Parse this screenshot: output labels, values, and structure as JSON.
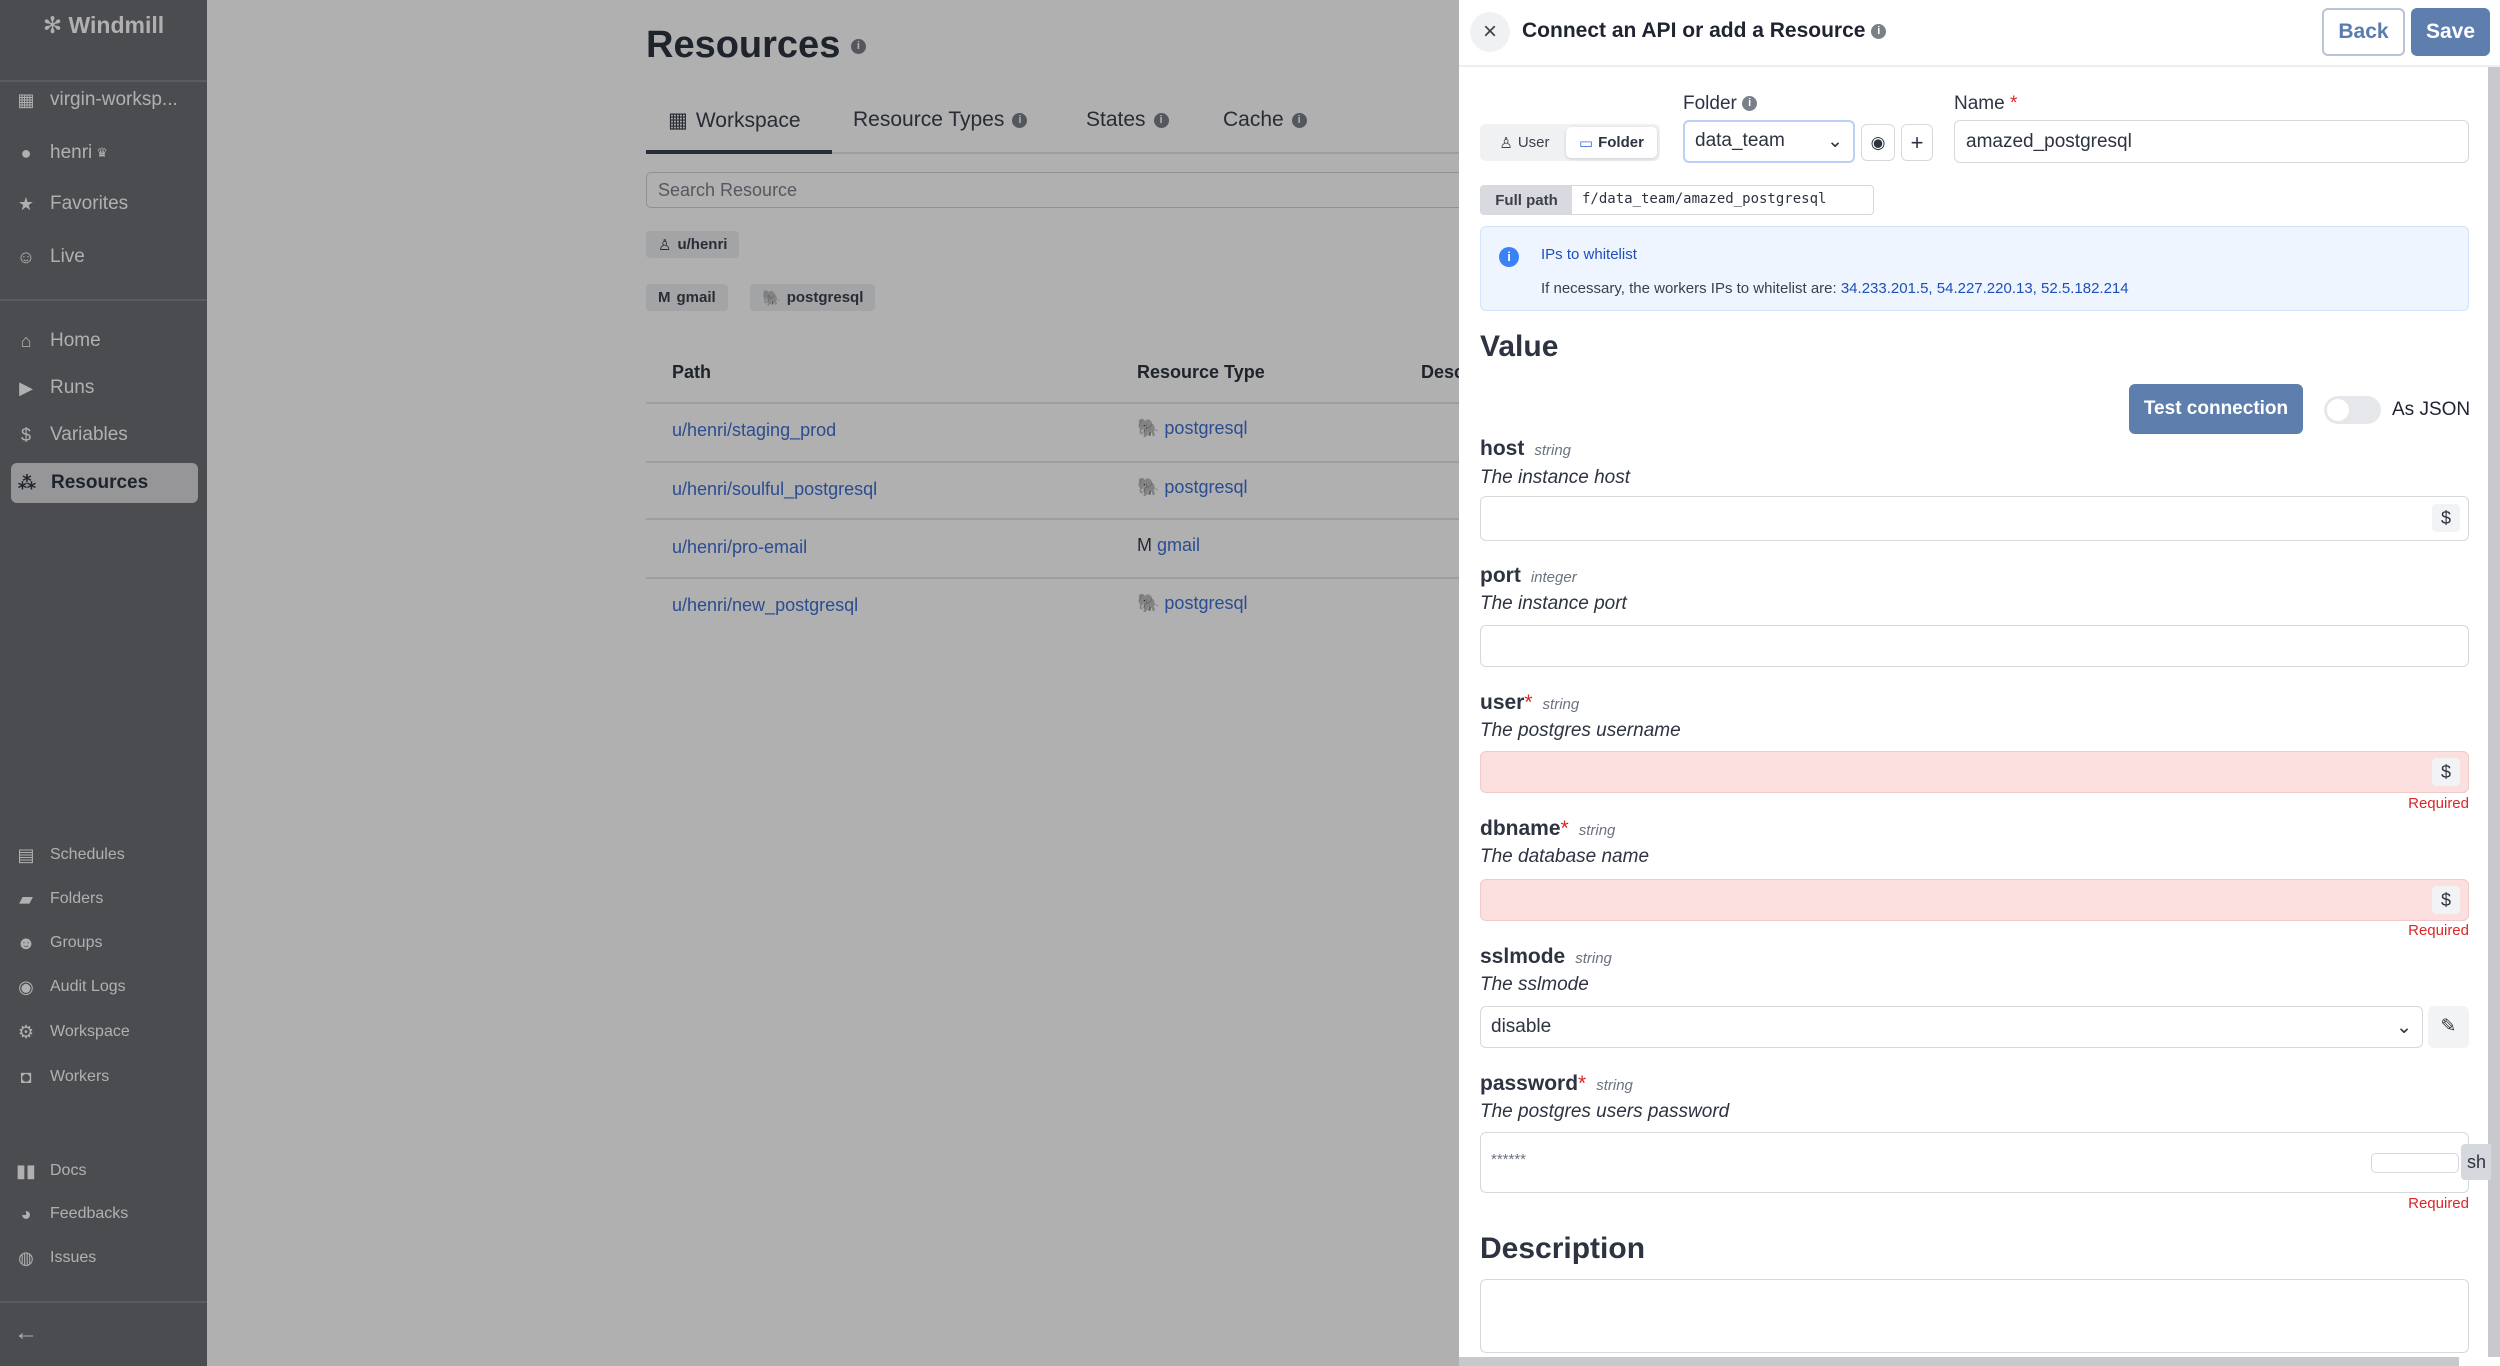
{
  "sidebar": {
    "logo": "Windmill",
    "workspace": "virgin-worksp...",
    "user": "henri",
    "top_items": [
      {
        "label": "Favorites",
        "icon": "star-icon"
      },
      {
        "label": "Live",
        "icon": "users-icon"
      }
    ],
    "main_items": [
      {
        "label": "Home",
        "icon": "home-icon"
      },
      {
        "label": "Runs",
        "icon": "play-icon"
      },
      {
        "label": "Variables",
        "icon": "dollar-icon"
      },
      {
        "label": "Resources",
        "icon": "boxes-icon",
        "active": true
      }
    ],
    "settings_items": [
      {
        "label": "Schedules"
      },
      {
        "label": "Folders"
      },
      {
        "label": "Groups"
      },
      {
        "label": "Audit Logs"
      },
      {
        "label": "Workspace"
      },
      {
        "label": "Workers"
      }
    ],
    "help_items": [
      {
        "label": "Docs"
      },
      {
        "label": "Feedbacks"
      },
      {
        "label": "Issues"
      }
    ]
  },
  "main": {
    "title": "Resources",
    "tabs": [
      {
        "label": "Workspace",
        "active": true
      },
      {
        "label": "Resource Types"
      },
      {
        "label": "States"
      },
      {
        "label": "Cache"
      }
    ],
    "search_placeholder": "Search Resource",
    "owner_filter": "u/henri",
    "type_filters": [
      "gmail",
      "postgresql"
    ],
    "table": {
      "headers": [
        "Path",
        "Resource Type",
        "Desc"
      ],
      "rows": [
        {
          "path": "u/henri/staging_prod",
          "type": "postgresql"
        },
        {
          "path": "u/henri/soulful_postgresql",
          "type": "postgresql"
        },
        {
          "path": "u/henri/pro-email",
          "type": "gmail"
        },
        {
          "path": "u/henri/new_postgresql",
          "type": "postgresql"
        }
      ]
    }
  },
  "drawer": {
    "title": "Connect an API or add a Resource",
    "back": "Back",
    "save": "Save",
    "owner_toggle": {
      "user": "User",
      "folder": "Folder",
      "selected": "Folder"
    },
    "folder_label": "Folder",
    "folder_value": "data_team",
    "name_label": "Name",
    "name_required": "*",
    "name_value": "amazed_postgresql",
    "full_path_label": "Full path",
    "full_path": "f/data_team/amazed_postgresql",
    "alert": {
      "title": "IPs to whitelist",
      "text": "If necessary, the workers IPs to whitelist are: ",
      "ips": "34.233.201.5, 54.227.220.13, 52.5.182.214"
    },
    "value_heading": "Value",
    "test_connection": "Test connection",
    "as_json": "As JSON",
    "as_json_on": false,
    "fields": [
      {
        "name": "host",
        "required": false,
        "type": "string",
        "desc": "The instance host",
        "value": ""
      },
      {
        "name": "port",
        "required": false,
        "type": "integer",
        "desc": "The instance port",
        "value": ""
      },
      {
        "name": "user",
        "required": true,
        "type": "string",
        "desc": "The postgres username",
        "value": "",
        "error": "Required"
      },
      {
        "name": "dbname",
        "required": true,
        "type": "string",
        "desc": "The database name",
        "value": "",
        "error": "Required"
      },
      {
        "name": "sslmode",
        "required": false,
        "type": "string",
        "desc": "The sslmode",
        "value": "disable"
      },
      {
        "name": "password",
        "required": true,
        "type": "string",
        "desc": "The postgres users password",
        "value": "******",
        "error": "Required",
        "show_label": "sh"
      }
    ],
    "required_mark": "*",
    "dollar": "$",
    "description_heading": "Description"
  }
}
